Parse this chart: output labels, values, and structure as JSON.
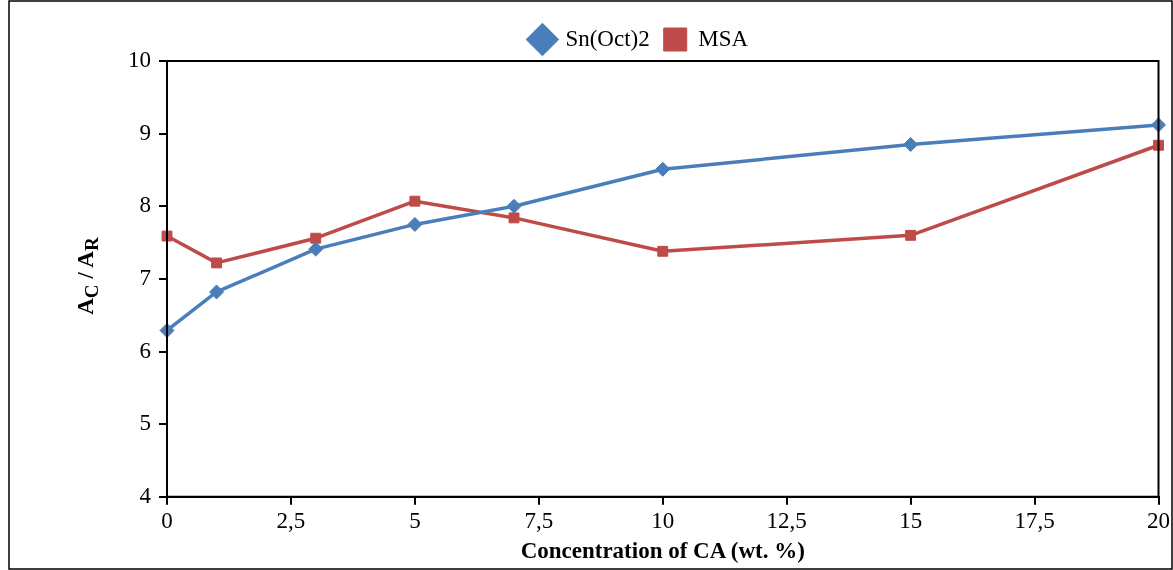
{
  "chart_data": {
    "type": "line",
    "xlabel": "Concentration of CA (wt. %)",
    "ylabel": "A$_{C}$ / A$_{R}$",
    "x": [
      0,
      1,
      3,
      5,
      7,
      10,
      15,
      20
    ],
    "series": [
      {
        "name": "Sn(Oct)2",
        "color": "#4a7ebb",
        "marker": "diamond",
        "values": [
          6.29,
          6.82,
          7.41,
          7.75,
          8.0,
          8.51,
          8.85,
          9.12
        ]
      },
      {
        "name": "MSA",
        "color": "#be4b48",
        "marker": "square",
        "values": [
          7.59,
          7.22,
          7.56,
          8.07,
          7.84,
          7.38,
          7.6,
          8.84
        ]
      }
    ],
    "xlim": [
      0,
      20
    ],
    "xticks": [
      0,
      {
        "value": 2.5,
        "label": "2,5"
      },
      5,
      {
        "value": 7.5,
        "label": "7,5"
      },
      10,
      {
        "value": 12.5,
        "label": "12,5"
      },
      15,
      {
        "value": 17.5,
        "label": "17,5"
      },
      20
    ],
    "ylim": [
      4,
      10
    ],
    "yticks": [
      4,
      5,
      6,
      7,
      8,
      9,
      10
    ],
    "grid": false,
    "legend": "top",
    "line_style": "solid"
  }
}
